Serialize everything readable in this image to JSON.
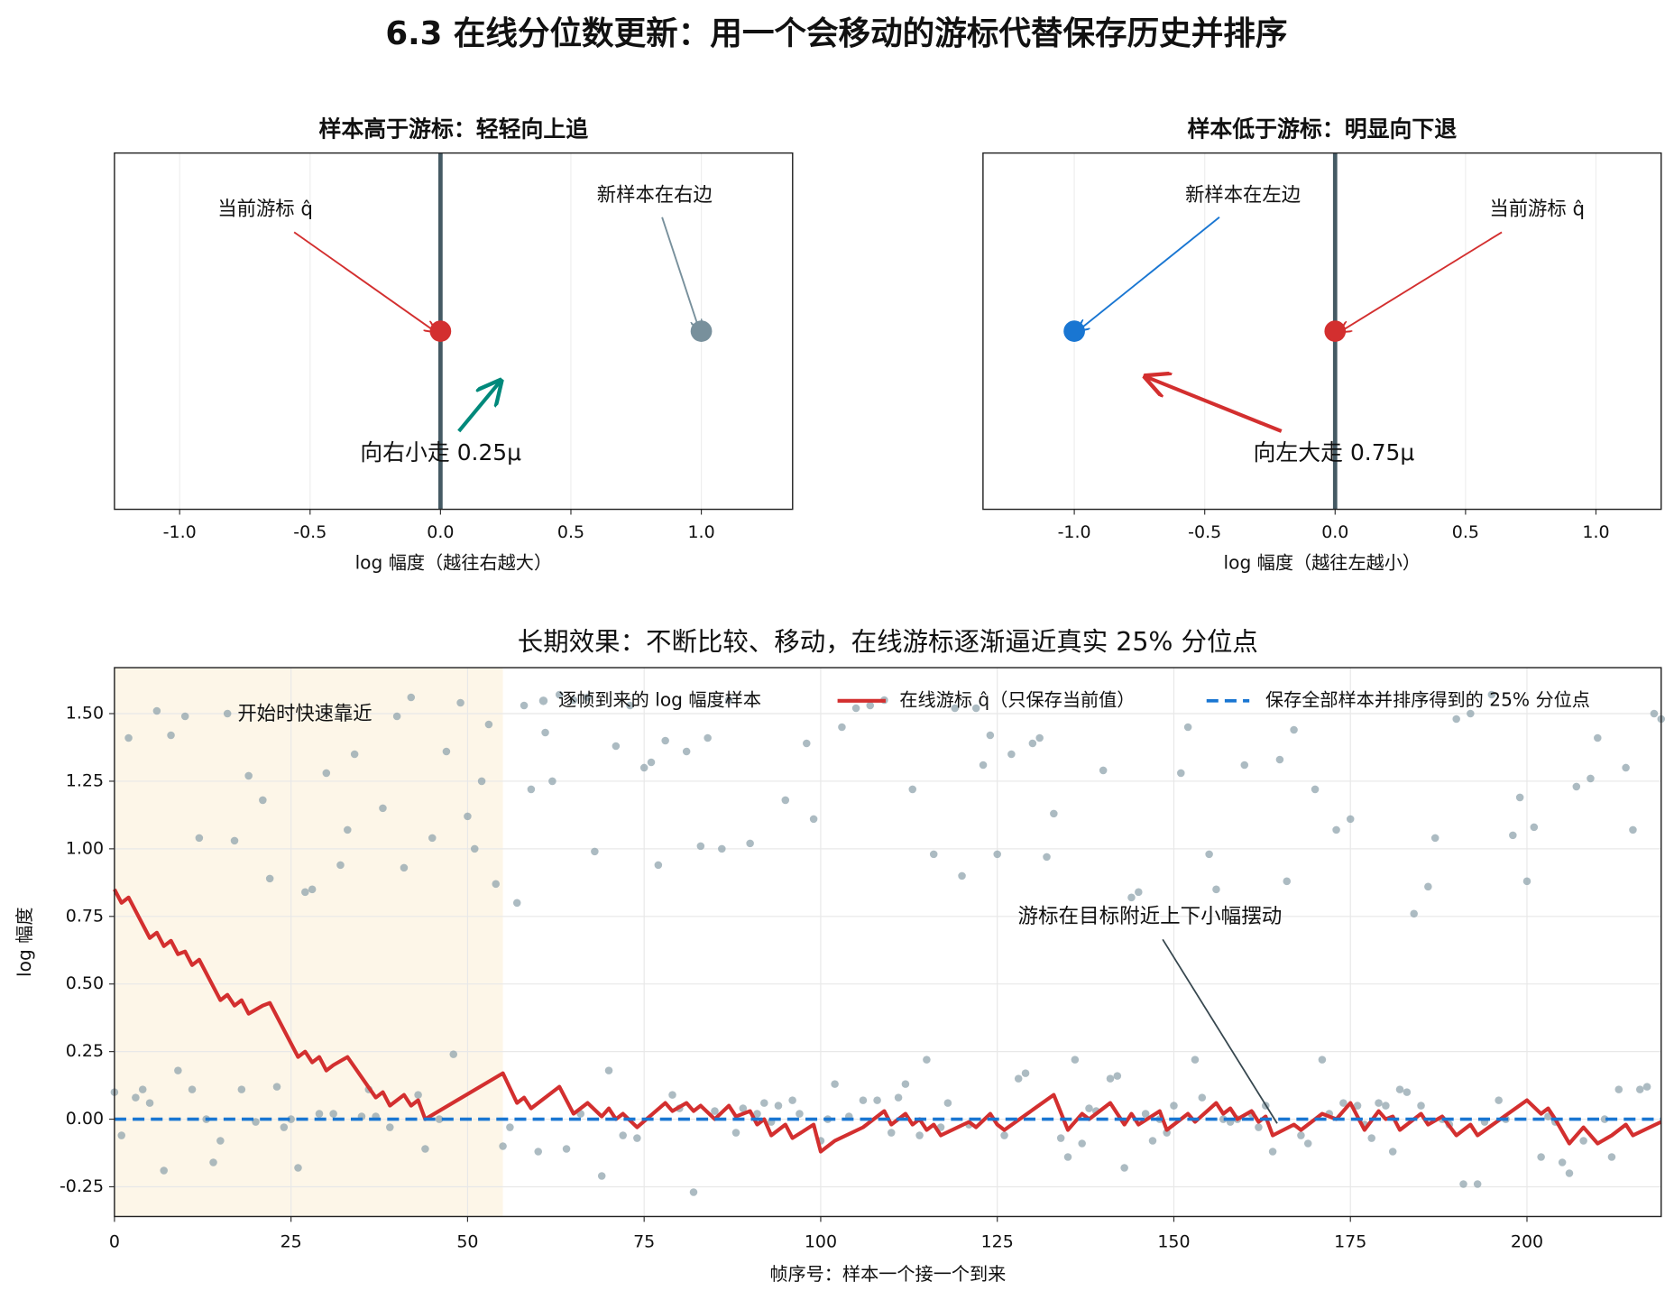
{
  "title": "6.3 在线分位数更新：用一个会移动的游标代替保存历史并排序",
  "chart_data": [
    {
      "type": "scatter",
      "title": "样本高于游标：轻轻向上追",
      "xlabel": "log 幅度（越往右越大）",
      "xlim": [
        -1.25,
        1.35
      ],
      "ylim": [
        -1,
        1
      ],
      "xticks": [
        {
          "value": -1,
          "label": "-1.0"
        },
        -0.5,
        {
          "value": 0,
          "label": "0.0"
        },
        0.5,
        {
          "value": 1,
          "label": "1.0"
        }
      ],
      "grid": true,
      "vline": {
        "value": 0,
        "color": "#455a64"
      },
      "series": [
        {
          "name": "当前游标 q̂",
          "color": "#d32f2f",
          "x": [
            0
          ],
          "values": [
            0
          ]
        },
        {
          "name": "新样本在右边",
          "color": "#78909c",
          "x": [
            1
          ],
          "values": [
            0
          ]
        }
      ],
      "step": {
        "text": "向右小走 0.25μ",
        "color": "#00897b"
      }
    },
    {
      "type": "scatter",
      "title": "样本低于游标：明显向下退",
      "xlabel": "log 幅度（越往左越小）",
      "xlim": [
        -1.35,
        1.25
      ],
      "ylim": [
        -1,
        1
      ],
      "xticks": [
        {
          "value": -1,
          "label": "-1.0"
        },
        -0.5,
        {
          "value": 0,
          "label": "0.0"
        },
        0.5,
        {
          "value": 1,
          "label": "1.0"
        }
      ],
      "grid": true,
      "vline": {
        "value": 0,
        "color": "#455a64"
      },
      "series": [
        {
          "name": "新样本在左边",
          "color": "#1976d2",
          "x": [
            -1
          ],
          "values": [
            0
          ]
        },
        {
          "name": "当前游标 q̂",
          "color": "#d32f2f",
          "x": [
            0
          ],
          "values": [
            0
          ]
        }
      ],
      "step": {
        "text": "向左大走 0.75μ",
        "color": "#d32f2f"
      }
    },
    {
      "type": "line",
      "title": "长期效果：不断比较、移动，在线游标逐渐逼近真实 25% 分位点",
      "xlabel": "帧序号：样本一个接一个到来",
      "ylabel": "log 幅度",
      "xlim": [
        0,
        219
      ],
      "ylim": [
        -0.36,
        1.67
      ],
      "xticks": [
        0,
        25,
        50,
        75,
        100,
        125,
        150,
        175,
        200
      ],
      "yticks": [
        -0.25,
        {
          "value": 0,
          "label": "0.00"
        },
        0.25,
        {
          "value": 0.5,
          "label": "0.50"
        },
        0.75,
        {
          "value": 1,
          "label": "1.00"
        },
        1.25,
        {
          "value": 1.5,
          "label": "1.50"
        }
      ],
      "grid": true,
      "legend": "upper right",
      "shade": {
        "x": [
          0,
          55
        ],
        "label": "开始时快速靠近",
        "color": "#fdf6e8",
        "label_color": "#8a6d00"
      },
      "annotation": "游标在目标附近上下小幅摆动",
      "series": [
        {
          "name": "逐帧到来的 log 幅度样本",
          "style": "markers",
          "color": "#90a4ae",
          "x": [
            0,
            1,
            2,
            3,
            4,
            5,
            6,
            7,
            8,
            9,
            10,
            11,
            12,
            13,
            14,
            15,
            16,
            17,
            18,
            19,
            20,
            21,
            22,
            23,
            24,
            25,
            26,
            27,
            28,
            29,
            30,
            31,
            32,
            33,
            34,
            35,
            36,
            37,
            38,
            39,
            40,
            41,
            42,
            43,
            44,
            45,
            46,
            47,
            48,
            49,
            50,
            51,
            52,
            53,
            54,
            55,
            56,
            57,
            58,
            59,
            60,
            61,
            62,
            63,
            64,
            65,
            66,
            67,
            68,
            69,
            70,
            71,
            72,
            73,
            74,
            75,
            76,
            77,
            78,
            79,
            80,
            81,
            82,
            83,
            84,
            85,
            86,
            87,
            88,
            89,
            90,
            91,
            92,
            93,
            94,
            95,
            96,
            97,
            98,
            99,
            100,
            101,
            102,
            103,
            104,
            105,
            106,
            107,
            108,
            109,
            110,
            111,
            112,
            113,
            114,
            115,
            116,
            117,
            118,
            119,
            120,
            121,
            122,
            123,
            124,
            125,
            126,
            127,
            128,
            129,
            130,
            131,
            132,
            133,
            134,
            135,
            136,
            137,
            138,
            139,
            140,
            141,
            142,
            143,
            144,
            145,
            146,
            147,
            148,
            149,
            150,
            151,
            152,
            153,
            154,
            155,
            156,
            157,
            158,
            159,
            160,
            161,
            162,
            163,
            164,
            165,
            166,
            167,
            168,
            169,
            170,
            171,
            172,
            173,
            174,
            175,
            176,
            177,
            178,
            179,
            180,
            181,
            182,
            183,
            184,
            185,
            186,
            187,
            188,
            189,
            190,
            191,
            192,
            193,
            194,
            195,
            196,
            197,
            198,
            199,
            200,
            201,
            202,
            203,
            204,
            205,
            206,
            207,
            208,
            209,
            210,
            211,
            212,
            213,
            214,
            215,
            216,
            217,
            218,
            219
          ],
          "values": [
            0.1,
            -0.06,
            1.41,
            0.08,
            0.11,
            0.06,
            1.51,
            -0.19,
            1.42,
            0.18,
            1.49,
            0.11,
            1.04,
            0.0,
            -0.16,
            -0.08,
            1.5,
            1.03,
            0.11,
            1.27,
            -0.01,
            1.18,
            0.89,
            0.12,
            -0.03,
            0.0,
            -0.18,
            0.84,
            0.85,
            0.02,
            1.28,
            0.02,
            0.94,
            1.07,
            1.35,
            0.01,
            0.11,
            0.01,
            1.15,
            -0.03,
            1.49,
            0.93,
            1.56,
            0.09,
            -0.11,
            1.04,
            0.0,
            1.36,
            0.24,
            1.54,
            1.12,
            1.0,
            1.25,
            1.46,
            0.87,
            -0.1,
            -0.03,
            0.8,
            1.53,
            1.22,
            -0.12,
            1.43,
            1.25,
            1.57,
            -0.11,
            1.55,
            0.02,
            1.56,
            0.99,
            -0.21,
            0.18,
            1.38,
            -0.06,
            1.53,
            -0.07,
            1.3,
            1.32,
            0.94,
            1.4,
            0.09,
            0.04,
            1.36,
            -0.27,
            1.01,
            1.41,
            0.03,
            1.0,
            1.55,
            -0.05,
            0.04,
            1.02,
            0.02,
            0.06,
            -0.01,
            0.05,
            1.18,
            0.07,
            0.02,
            1.39,
            1.11,
            -0.08,
            0.0,
            0.13,
            1.45,
            0.01,
            1.52,
            0.07,
            1.53,
            0.07,
            1.55,
            -0.05,
            0.08,
            0.13,
            1.22,
            -0.06,
            0.22,
            0.98,
            -0.03,
            0.06,
            1.52,
            0.9,
            -0.02,
            1.52,
            1.31,
            1.42,
            0.98,
            -0.06,
            1.35,
            0.15,
            0.17,
            1.39,
            1.41,
            0.97,
            1.13,
            -0.07,
            -0.14,
            0.22,
            -0.09,
            0.04,
            0.03,
            1.29,
            0.15,
            0.16,
            -0.18,
            0.82,
            0.84,
            0.02,
            -0.08,
            0.0,
            -0.05,
            0.05,
            1.28,
            1.45,
            0.22,
            0.08,
            0.98,
            0.85,
            0.0,
            -0.01,
            0.0,
            1.31,
            0.02,
            -0.03,
            0.05,
            -0.12,
            1.33,
            0.88,
            1.44,
            -0.06,
            -0.09,
            1.22,
            0.22,
            0.02,
            1.07,
            0.06,
            1.11,
            0.05,
            -0.02,
            -0.07,
            0.06,
            0.05,
            -0.12,
            0.11,
            0.1,
            0.76,
            0.05,
            0.86,
            1.04,
            0.0,
            -0.02,
            1.48,
            -0.24,
            1.5,
            -0.24,
            -0.01,
            1.57,
            0.07,
            0.0,
            1.05,
            1.19,
            0.88,
            1.08,
            -0.14,
            0.01,
            -0.01,
            -0.16,
            -0.2,
            1.23,
            -0.08,
            1.26,
            1.41,
            0.0,
            -0.14,
            0.11,
            1.3,
            1.07,
            0.11,
            0.12,
            1.5,
            1.48
          ]
        },
        {
          "name": "在线游标 q̂（只保存当前值）",
          "style": "line",
          "color": "#d32f2f",
          "x": [
            0,
            1,
            2,
            5,
            6,
            7,
            8,
            9,
            10,
            11,
            12,
            15,
            16,
            17,
            18,
            19,
            21,
            22,
            26,
            27,
            28,
            29,
            30,
            31,
            33,
            37,
            38,
            39,
            41,
            42,
            43,
            44,
            55,
            57,
            58,
            59,
            63,
            65,
            67,
            69,
            70,
            71,
            72,
            74,
            78,
            79,
            81,
            82,
            83,
            85,
            87,
            88,
            90,
            91,
            92,
            93,
            95,
            96,
            99,
            100,
            102,
            106,
            109,
            110,
            112,
            113,
            114,
            115,
            116,
            117,
            121,
            122,
            124,
            125,
            126,
            133,
            135,
            137,
            138,
            141,
            143,
            144,
            145,
            148,
            149,
            152,
            153,
            156,
            157,
            158,
            159,
            161,
            162,
            163,
            164,
            167,
            168,
            171,
            173,
            175,
            177,
            179,
            180,
            181,
            182,
            185,
            186,
            188,
            190,
            192,
            193,
            200,
            202,
            203,
            204,
            206,
            208,
            210,
            212,
            214,
            215,
            219
          ],
          "values": [
            0.85,
            0.8,
            0.82,
            0.67,
            0.69,
            0.64,
            0.66,
            0.61,
            0.62,
            0.57,
            0.59,
            0.44,
            0.46,
            0.42,
            0.44,
            0.39,
            0.42,
            0.43,
            0.23,
            0.25,
            0.21,
            0.23,
            0.18,
            0.2,
            0.23,
            0.08,
            0.1,
            0.05,
            0.09,
            0.05,
            0.07,
            0.0,
            0.17,
            0.06,
            0.08,
            0.04,
            0.12,
            0.02,
            0.06,
            0.01,
            0.04,
            0.0,
            0.02,
            -0.03,
            0.06,
            0.03,
            0.06,
            0.03,
            0.05,
            0.0,
            0.05,
            0.01,
            0.03,
            -0.02,
            0.0,
            -0.06,
            -0.02,
            -0.07,
            -0.02,
            -0.12,
            -0.08,
            -0.03,
            0.03,
            -0.02,
            0.02,
            -0.02,
            0.0,
            -0.04,
            -0.02,
            -0.06,
            -0.01,
            -0.03,
            0.02,
            -0.02,
            -0.04,
            0.09,
            -0.04,
            0.02,
            0.0,
            0.06,
            -0.02,
            0.02,
            -0.02,
            0.03,
            -0.04,
            0.02,
            -0.01,
            0.06,
            0.02,
            0.04,
            0.0,
            0.03,
            -0.01,
            0.01,
            -0.06,
            -0.02,
            -0.04,
            0.02,
            0.0,
            0.06,
            -0.04,
            0.03,
            0.0,
            0.01,
            -0.04,
            0.02,
            -0.02,
            0.01,
            -0.06,
            -0.02,
            -0.06,
            0.07,
            0.02,
            0.04,
            0.0,
            -0.09,
            -0.03,
            -0.09,
            -0.06,
            -0.02,
            -0.06,
            -0.01
          ]
        }
      ],
      "reference": {
        "name": "保存全部样本并排序得到的 25% 分位点",
        "color": "#1976d2",
        "value": 0
      }
    }
  ]
}
